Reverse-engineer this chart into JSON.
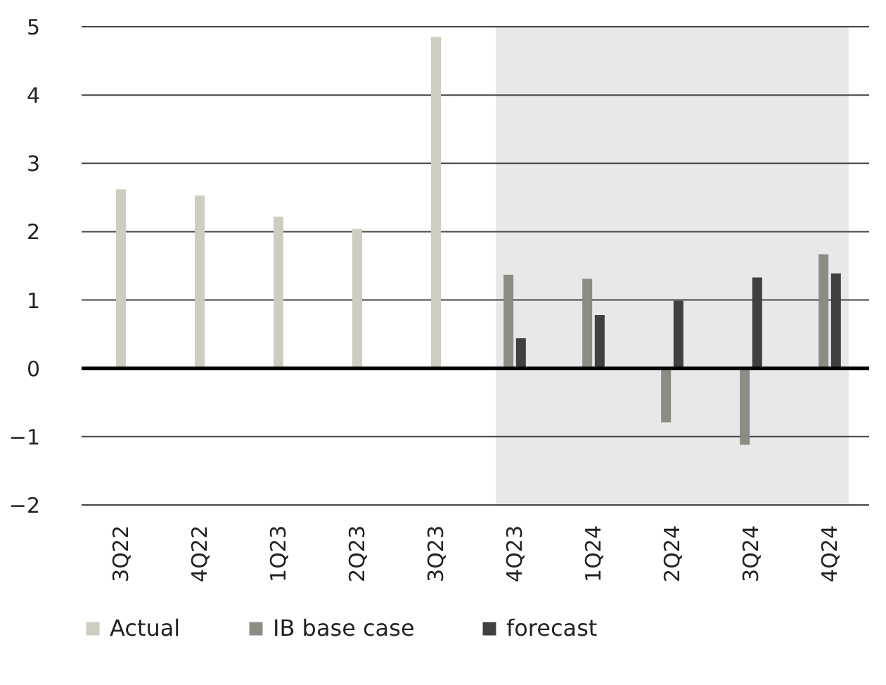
{
  "chart_data": {
    "type": "bar",
    "categories": [
      "3Q22",
      "4Q22",
      "1Q23",
      "2Q23",
      "3Q23",
      "4Q23",
      "1Q24",
      "2Q24",
      "3Q24",
      "4Q24"
    ],
    "series": [
      {
        "name": "Actual",
        "color": "#cfccc0",
        "values": [
          2.62,
          2.53,
          2.22,
          2.04,
          4.85,
          null,
          null,
          null,
          null,
          null
        ]
      },
      {
        "name": "IB base case",
        "color": "#8c8c82",
        "values": [
          null,
          null,
          null,
          null,
          null,
          1.37,
          1.31,
          -0.79,
          -1.12,
          1.67
        ]
      },
      {
        "name": "forecast",
        "color": "#404040",
        "values": [
          null,
          null,
          null,
          null,
          null,
          0.44,
          0.78,
          0.99,
          1.33,
          1.39
        ]
      }
    ],
    "ylim": [
      -2,
      5
    ],
    "yticks": [
      -2,
      -1,
      0,
      1,
      2,
      3,
      4,
      5
    ],
    "grid": "y",
    "legend": "bottom",
    "ref_lines": [
      {
        "axis": "y",
        "value": 0,
        "color": "#000000"
      }
    ],
    "bands": [
      {
        "axis": "x",
        "from": "4Q23",
        "to": "4Q24",
        "color": "#e8e8e8"
      }
    ]
  }
}
